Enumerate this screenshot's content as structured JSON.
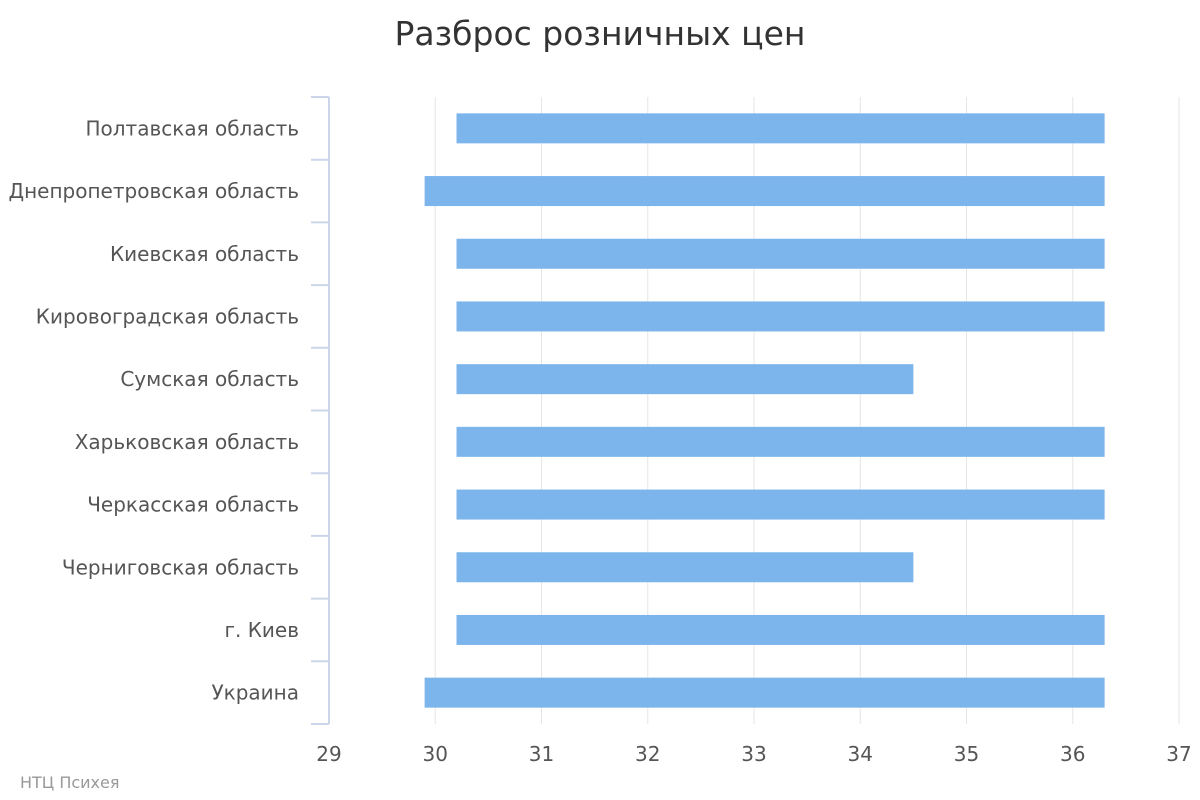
{
  "chart_data": {
    "type": "bar",
    "orientation": "horizontal",
    "title": "Разброс розничных цен",
    "xlabel": "",
    "ylabel": "",
    "categories": [
      "Полтавская область",
      "Днепропетровская область",
      "Киевская область",
      "Кировоградская область",
      "Сумская область",
      "Харьковская область",
      "Черкасская область",
      "Черниговская область",
      "г. Киев",
      "Украина"
    ],
    "series": [
      {
        "ranges": [
          [
            30.2,
            36.3
          ],
          [
            29.9,
            36.3
          ],
          [
            30.2,
            36.3
          ],
          [
            30.2,
            36.3
          ],
          [
            30.2,
            34.5
          ],
          [
            30.2,
            36.3
          ],
          [
            30.2,
            36.3
          ],
          [
            30.2,
            34.5
          ],
          [
            30.2,
            36.3
          ],
          [
            29.9,
            36.3
          ]
        ],
        "color": "#7cb5ec"
      }
    ],
    "xlim": [
      29,
      37
    ],
    "xticks": [
      "29",
      "30",
      "31",
      "32",
      "33",
      "34",
      "35",
      "36",
      "37"
    ],
    "grid": "vertical",
    "legend": "none"
  },
  "credits": "НТЦ Психея",
  "colors": {
    "bar": "#7cb5ec",
    "grid": "#e6e6e6",
    "axis": "#ccd6eb",
    "text": "#555555",
    "title": "#333333"
  }
}
